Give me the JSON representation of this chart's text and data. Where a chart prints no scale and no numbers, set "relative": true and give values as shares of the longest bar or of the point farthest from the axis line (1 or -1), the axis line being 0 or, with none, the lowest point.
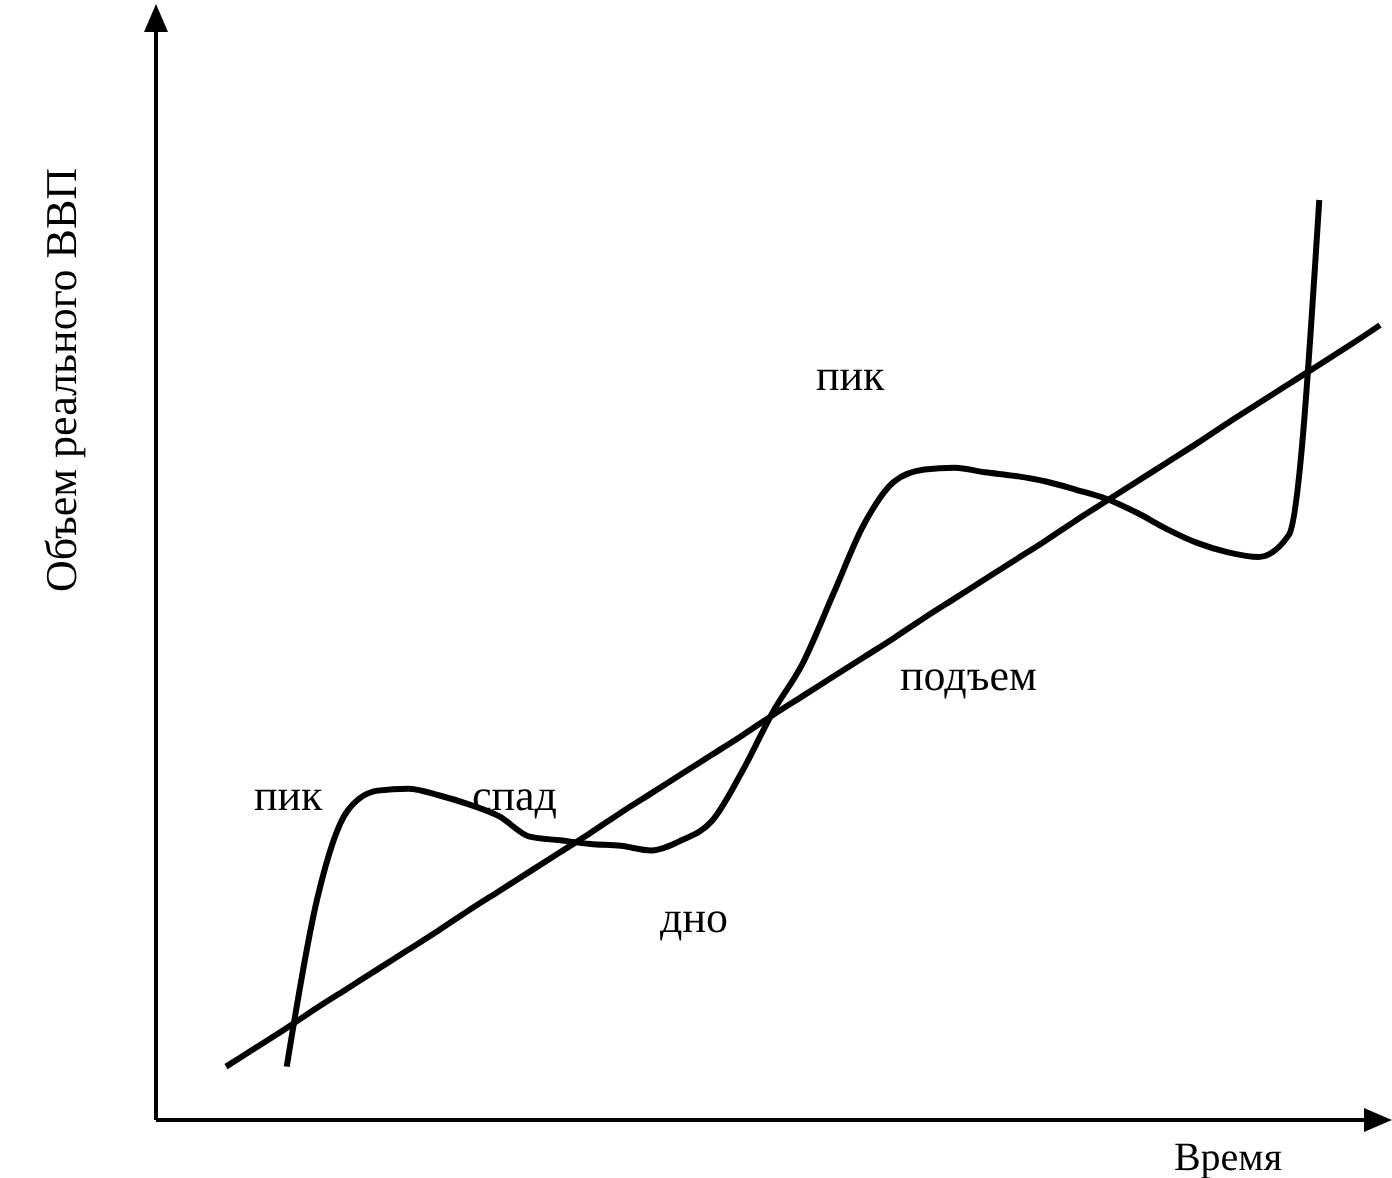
{
  "chart_data": {
    "type": "line",
    "relative": true,
    "xlabel": "Время",
    "ylabel": "Объем реального ВВП",
    "categories": [
      null,
      null,
      null,
      null,
      null,
      null,
      null,
      null,
      null,
      null,
      null,
      null,
      null,
      null,
      null,
      null,
      null,
      null,
      null,
      null,
      null,
      null,
      null,
      null,
      null,
      null,
      null,
      null,
      null,
      null,
      null,
      null,
      null,
      null,
      null,
      null,
      null,
      null,
      null
    ],
    "series": [
      {
        "color": "#000000",
        "values": [
          null,
          null,
          0.058,
          0.24,
          0.336,
          0.358,
          0.36,
          0.353,
          0.343,
          0.33,
          0.308,
          0.304,
          0.3,
          0.298,
          0.293,
          0.304,
          0.325,
          0.379,
          0.443,
          0.497,
          0.572,
          0.647,
          0.694,
          0.707,
          0.709,
          0.704,
          0.7,
          0.694,
          0.685,
          0.675,
          0.66,
          0.642,
          0.627,
          0.617,
          0.612,
          0.636,
          1.0,
          null,
          null
        ]
      },
      {
        "color": "#000000",
        "values": [
          0.058,
          0.079,
          0.1,
          0.122,
          0.143,
          0.164,
          0.185,
          0.206,
          0.228,
          0.249,
          0.27,
          0.291,
          0.312,
          0.334,
          0.355,
          0.376,
          0.397,
          0.418,
          0.44,
          0.461,
          0.482,
          0.503,
          0.524,
          0.546,
          0.567,
          0.588,
          0.609,
          0.63,
          0.652,
          0.673,
          0.694,
          0.715,
          0.736,
          0.758,
          0.779,
          0.8,
          0.821,
          0.842,
          0.864
        ]
      }
    ],
    "annotations": [
      "пик",
      "спад",
      "дно",
      "подъем",
      "пик"
    ]
  }
}
